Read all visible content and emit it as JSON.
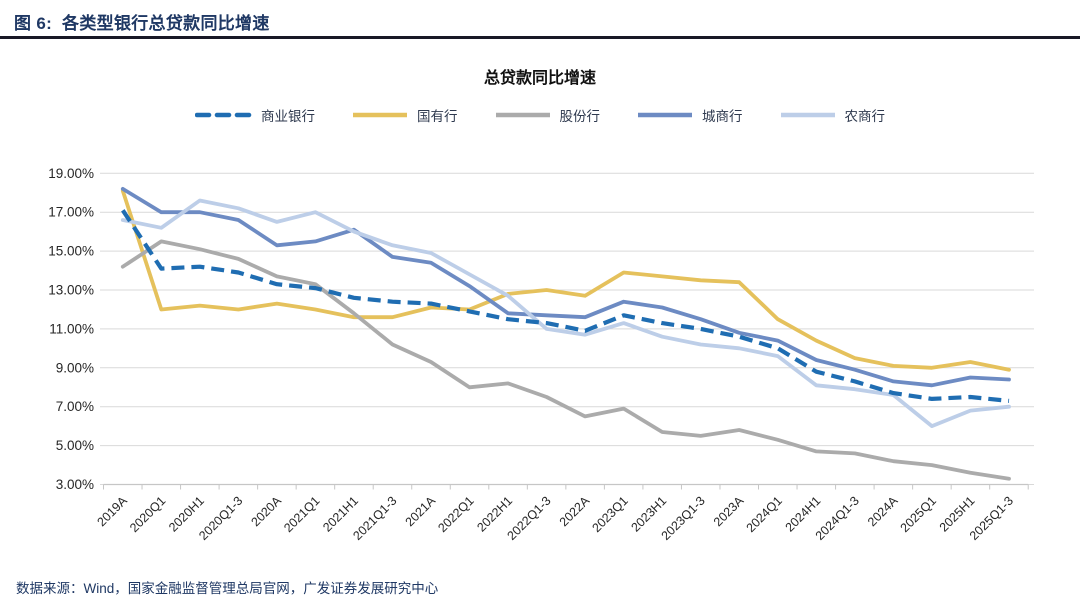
{
  "header": {
    "figure_label": "图 6:",
    "figure_title": "各类型银行总贷款同比增速"
  },
  "footer": {
    "source_text": "数据来源：Wind，国家金融监督管理总局官网，广发证券发展研究中心"
  },
  "chart_data": {
    "type": "line",
    "title": "总贷款同比增速",
    "xlabel": "",
    "ylabel": "",
    "ylim": [
      3,
      19
    ],
    "ytick_step": 2,
    "grid": true,
    "legend_position": "top",
    "ytick_labels": [
      "3.00%",
      "5.00%",
      "7.00%",
      "9.00%",
      "11.00%",
      "13.00%",
      "15.00%",
      "17.00%",
      "19.00%"
    ],
    "categories": [
      "2019A",
      "2020Q1",
      "2020H1",
      "2020Q1-3",
      "2020A",
      "2021Q1",
      "2021H1",
      "2021Q1-3",
      "2021A",
      "2022Q1",
      "2022H1",
      "2022Q1-3",
      "2022A",
      "2023Q1",
      "2023H1",
      "2023Q1-3",
      "2023A",
      "2024Q1",
      "2024H1",
      "2024Q1-3",
      "2024A",
      "2025Q1",
      "2025H1",
      "2025Q1-3"
    ],
    "series": [
      {
        "name": "商业银行",
        "color": "#1F6DB2",
        "style": "dashed",
        "z_order": 5,
        "values": [
          17.1,
          14.1,
          14.2,
          13.9,
          13.3,
          13.1,
          12.6,
          12.4,
          12.3,
          11.9,
          11.5,
          11.3,
          10.9,
          11.7,
          11.3,
          11.0,
          10.6,
          10.0,
          8.8,
          8.3,
          7.7,
          7.4,
          7.5,
          7.3
        ]
      },
      {
        "name": "国有行",
        "color": "#E5C15C",
        "style": "solid",
        "z_order": 1,
        "values": [
          18.1,
          12.0,
          12.2,
          12.0,
          12.3,
          12.0,
          11.6,
          11.6,
          12.1,
          12.0,
          12.8,
          13.0,
          12.7,
          13.9,
          13.7,
          13.5,
          13.4,
          11.5,
          10.4,
          9.5,
          9.1,
          9.0,
          9.3,
          8.9
        ]
      },
      {
        "name": "股份行",
        "color": "#ABABAB",
        "style": "solid",
        "z_order": 2,
        "values": [
          14.2,
          15.5,
          15.1,
          14.6,
          13.7,
          13.3,
          11.8,
          10.2,
          9.3,
          8.0,
          8.2,
          7.5,
          6.5,
          6.9,
          5.7,
          5.5,
          5.8,
          5.3,
          4.7,
          4.6,
          4.2,
          4.0,
          3.6,
          3.3
        ]
      },
      {
        "name": "城商行",
        "color": "#6D8BC3",
        "style": "solid",
        "z_order": 3,
        "values": [
          18.2,
          17.0,
          17.0,
          16.6,
          15.3,
          15.5,
          16.1,
          14.7,
          14.4,
          13.2,
          11.8,
          11.7,
          11.6,
          12.4,
          12.1,
          11.5,
          10.8,
          10.4,
          9.4,
          8.9,
          8.3,
          8.1,
          8.5,
          8.4
        ]
      },
      {
        "name": "农商行",
        "color": "#BDCEE8",
        "style": "solid",
        "z_order": 4,
        "values": [
          16.6,
          16.2,
          17.6,
          17.2,
          16.5,
          17.0,
          16.0,
          15.3,
          14.9,
          13.8,
          12.7,
          11.0,
          10.7,
          11.3,
          10.6,
          10.2,
          10.0,
          9.6,
          8.1,
          7.9,
          7.6,
          6.0,
          6.8,
          7.0
        ]
      }
    ]
  }
}
